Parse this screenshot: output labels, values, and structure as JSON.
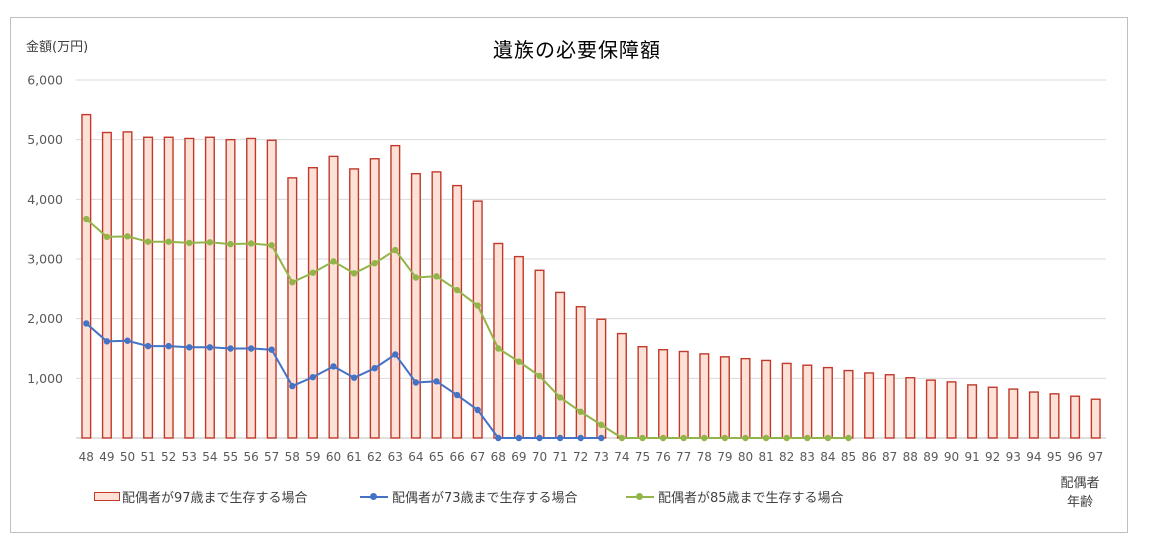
{
  "chart_data": {
    "type": "bar",
    "title": "遺族の必要保障額",
    "ylabel": "金額(万円)",
    "xlabel": "配偶者\n年齢",
    "ylim": [
      0,
      6000
    ],
    "yticks": [
      "",
      "1,000",
      "2,000",
      "3,000",
      "4,000",
      "5,000",
      "6,000"
    ],
    "grid": true,
    "legend_position": "bottom",
    "categories": [
      "48",
      "49",
      "50",
      "51",
      "52",
      "53",
      "54",
      "55",
      "56",
      "57",
      "58",
      "59",
      "60",
      "61",
      "62",
      "63",
      "64",
      "65",
      "66",
      "67",
      "68",
      "69",
      "70",
      "71",
      "72",
      "73",
      "74",
      "75",
      "76",
      "77",
      "78",
      "79",
      "80",
      "81",
      "82",
      "83",
      "84",
      "85",
      "86",
      "87",
      "88",
      "89",
      "90",
      "91",
      "92",
      "93",
      "94",
      "95",
      "96",
      "97"
    ],
    "series": [
      {
        "name": "配偶者が97歳まで生存する場合",
        "kind": "bar",
        "color": "#c0392b",
        "fill": "#fde0d6",
        "values": [
          5420,
          5120,
          5130,
          5040,
          5040,
          5020,
          5040,
          5000,
          5020,
          4990,
          4360,
          4530,
          4720,
          4510,
          4680,
          4900,
          4430,
          4460,
          4230,
          3970,
          3260,
          3040,
          2810,
          2440,
          2200,
          1990,
          1750,
          1530,
          1480,
          1450,
          1410,
          1360,
          1330,
          1300,
          1250,
          1220,
          1180,
          1130,
          1090,
          1060,
          1010,
          970,
          940,
          890,
          850,
          820,
          770,
          740,
          700,
          650
        ]
      },
      {
        "name": "配偶者が73歳まで生存する場合",
        "kind": "line",
        "color": "#4472c4",
        "values": [
          1920,
          1620,
          1630,
          1540,
          1540,
          1520,
          1520,
          1500,
          1500,
          1480,
          870,
          1020,
          1200,
          1010,
          1170,
          1400,
          930,
          950,
          720,
          470,
          0,
          0,
          0,
          0,
          0,
          0,
          null,
          null,
          null,
          null,
          null,
          null,
          null,
          null,
          null,
          null,
          null,
          null,
          null,
          null,
          null,
          null,
          null,
          null,
          null,
          null,
          null,
          null,
          null,
          null
        ]
      },
      {
        "name": "配偶者が85歳まで生存する場合",
        "kind": "line",
        "color": "#92b54a",
        "values": [
          3670,
          3370,
          3380,
          3290,
          3290,
          3270,
          3280,
          3250,
          3260,
          3230,
          2610,
          2770,
          2960,
          2760,
          2930,
          3150,
          2690,
          2710,
          2480,
          2220,
          1500,
          1280,
          1040,
          680,
          440,
          220,
          0,
          0,
          0,
          0,
          0,
          0,
          0,
          0,
          0,
          0,
          0,
          0,
          null,
          null,
          null,
          null,
          null,
          null,
          null,
          null,
          null,
          null,
          null,
          null
        ]
      }
    ]
  }
}
